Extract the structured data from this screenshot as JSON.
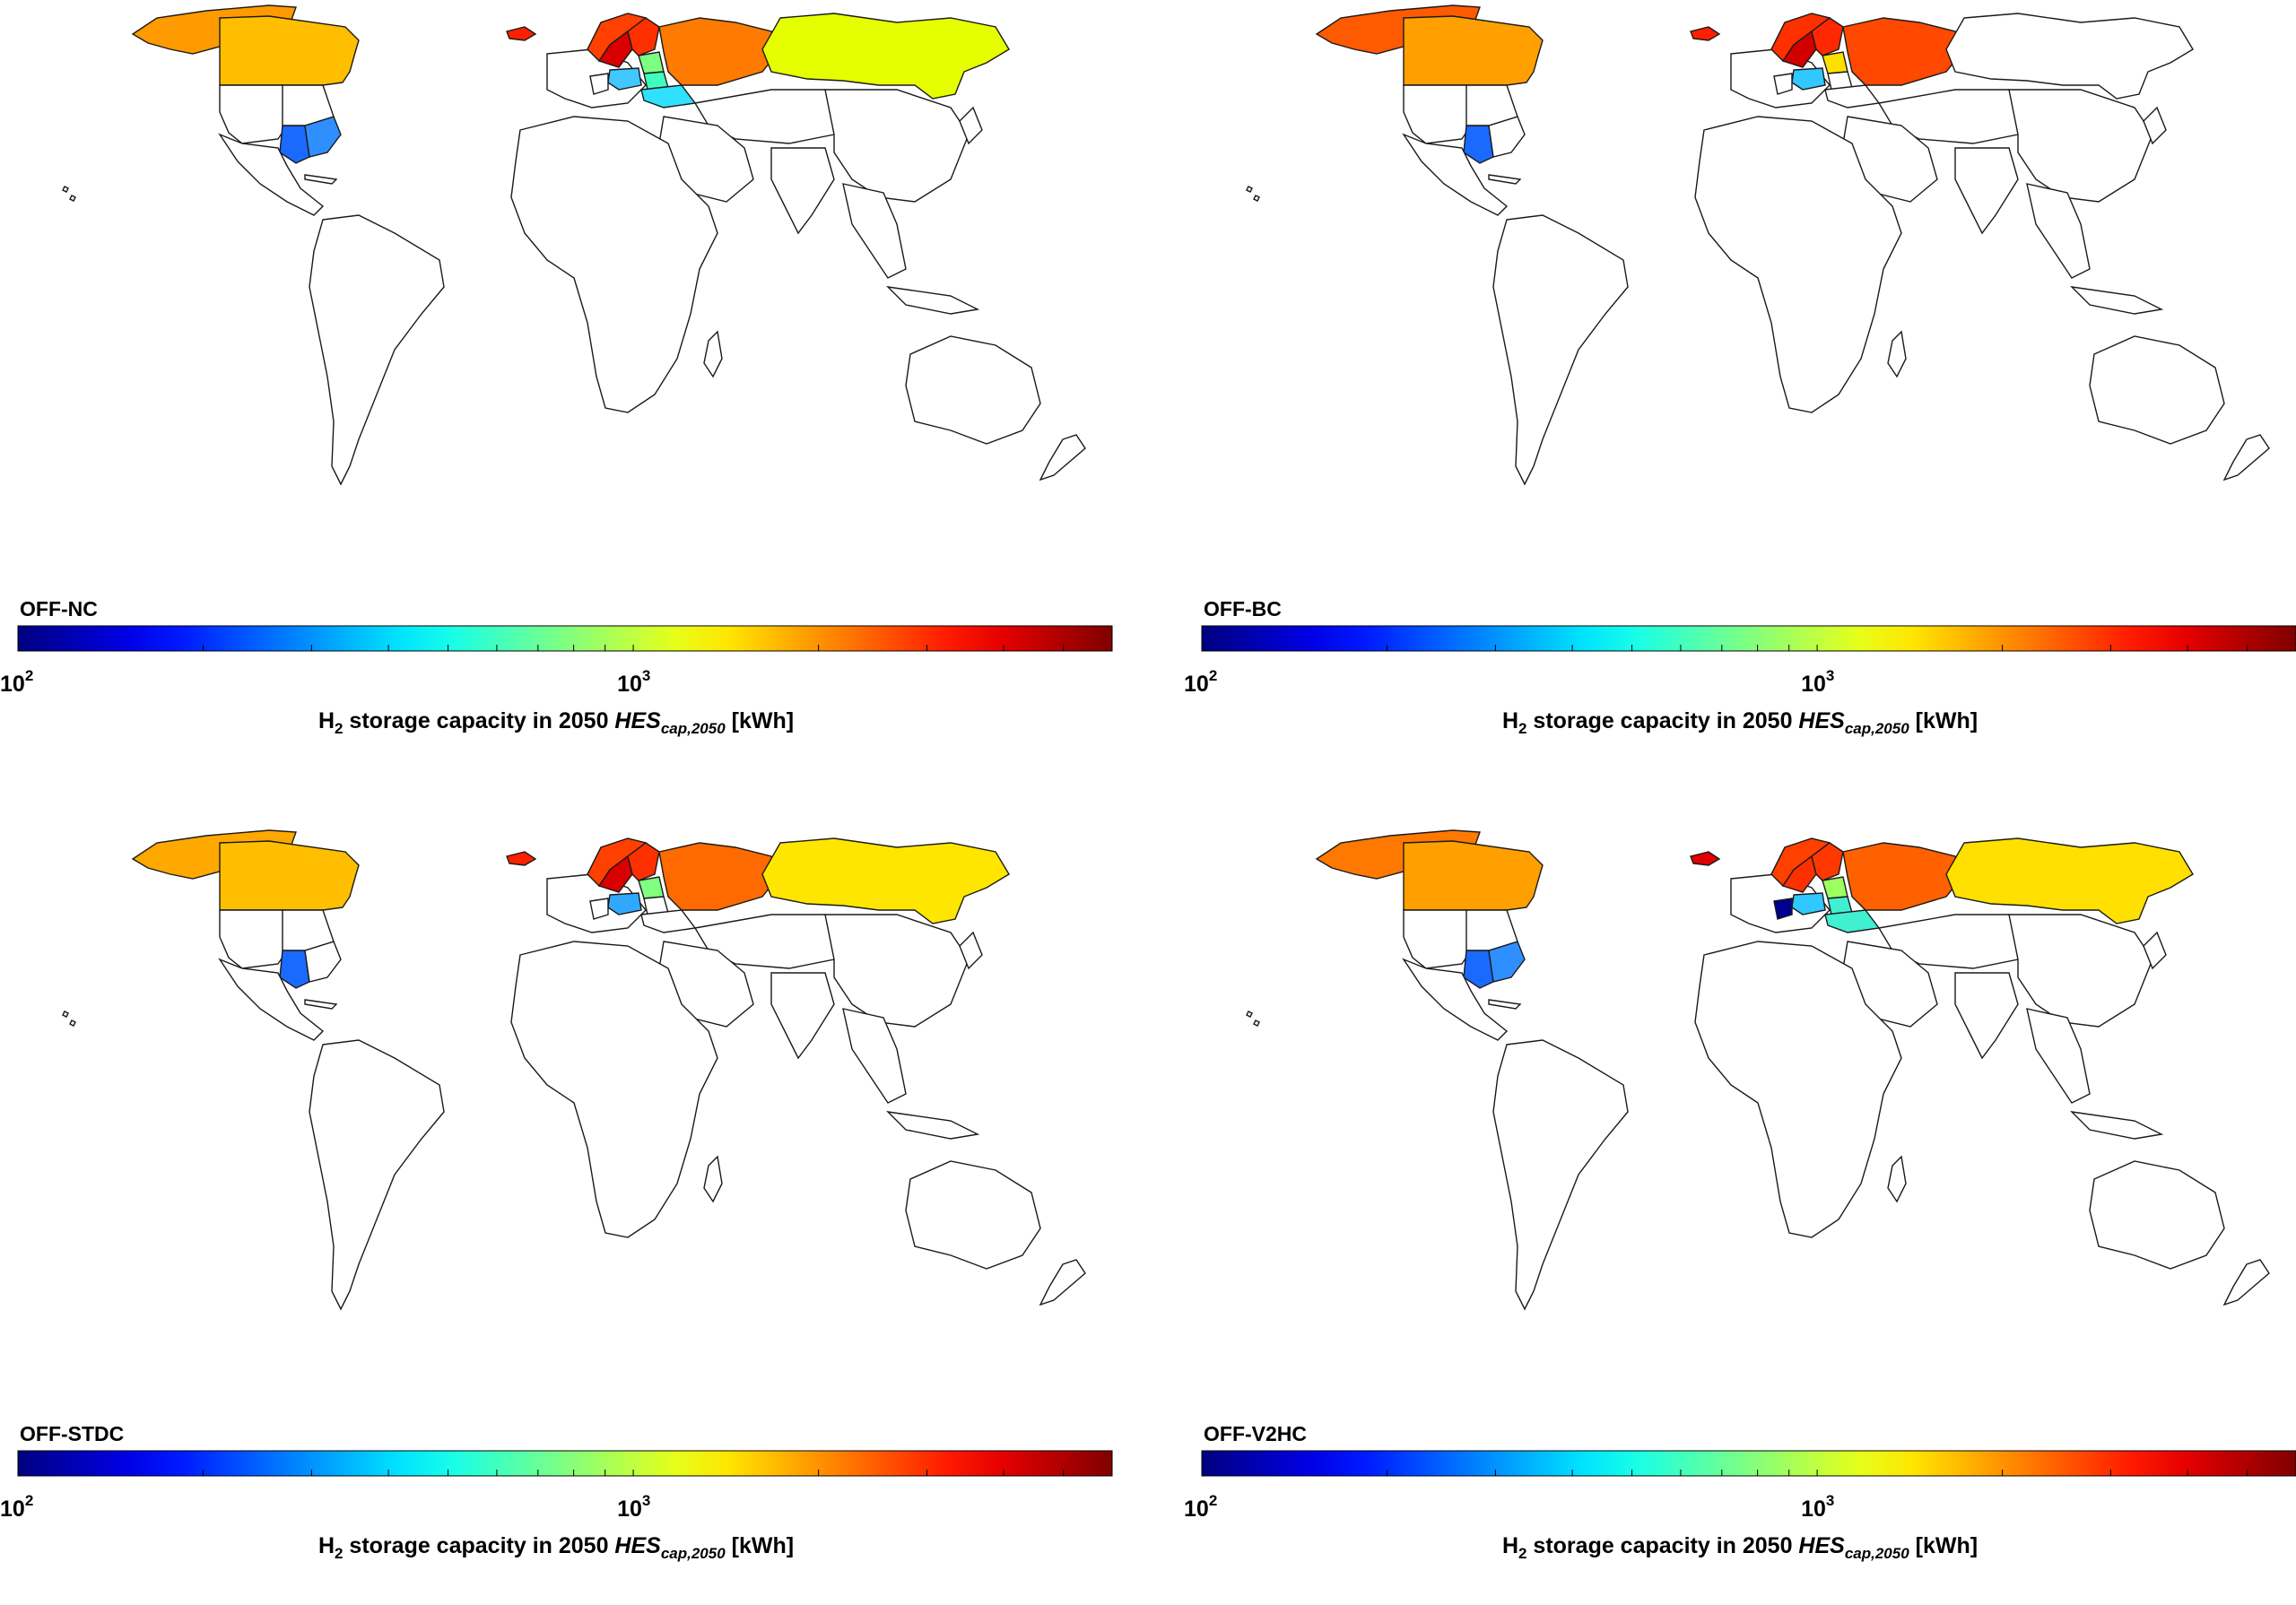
{
  "colorbar": {
    "tick_base": "10",
    "tick_low_exp": "2",
    "tick_high_exp": "3",
    "xlabel_pre": "H",
    "xlabel_sub": "2",
    "xlabel_mid": " storage capacity in 2050 ",
    "xlabel_var": "HES",
    "xlabel_var_sub": "cap,2050",
    "xlabel_unit": " [kWh]",
    "scale": "log",
    "range": [
      100,
      6000
    ],
    "colormap": "jet"
  },
  "panels": [
    {
      "scenario": "OFF-NC",
      "regions": [
        {
          "region": "greenland",
          "color": "#ff9a00"
        },
        {
          "region": "canada",
          "color": "#ffbe00"
        },
        {
          "region": "iceland",
          "color": "#ff2000"
        },
        {
          "region": "norway",
          "color": "#ff4000"
        },
        {
          "region": "sweden",
          "color": "#d80000"
        },
        {
          "region": "finland",
          "color": "#ff3000"
        },
        {
          "region": "russia-west",
          "color": "#ff7a00"
        },
        {
          "region": "russia-east",
          "color": "#e6ff00"
        },
        {
          "region": "belarus",
          "color": "#40ffbe"
        },
        {
          "region": "ukraine",
          "color": "#30e0ff"
        },
        {
          "region": "poland",
          "color": "#40c8ff"
        },
        {
          "region": "baltics",
          "color": "#7cff80"
        },
        {
          "region": "us-central",
          "color": "#1a6aff"
        },
        {
          "region": "us-east",
          "color": "#2f8fff"
        }
      ]
    },
    {
      "scenario": "OFF-BC",
      "regions": [
        {
          "region": "greenland",
          "color": "#ff5a00"
        },
        {
          "region": "canada",
          "color": "#ffa000"
        },
        {
          "region": "iceland",
          "color": "#ff2000"
        },
        {
          "region": "norway",
          "color": "#ff3000"
        },
        {
          "region": "sweden",
          "color": "#d00000"
        },
        {
          "region": "finland",
          "color": "#ff2800"
        },
        {
          "region": "russia-west",
          "color": "#ff4800"
        },
        {
          "region": "poland",
          "color": "#30c8ff"
        },
        {
          "region": "baltics",
          "color": "#ffe000"
        },
        {
          "region": "us-central",
          "color": "#1a6aff"
        }
      ]
    },
    {
      "scenario": "OFF-STDC",
      "regions": [
        {
          "region": "greenland",
          "color": "#ffa800"
        },
        {
          "region": "canada",
          "color": "#ffbe00"
        },
        {
          "region": "iceland",
          "color": "#ff2000"
        },
        {
          "region": "norway",
          "color": "#ff4000"
        },
        {
          "region": "sweden",
          "color": "#d80000"
        },
        {
          "region": "finland",
          "color": "#ff3000"
        },
        {
          "region": "russia-west",
          "color": "#ff6a00"
        },
        {
          "region": "russia-east",
          "color": "#ffe600"
        },
        {
          "region": "poland",
          "color": "#30a8ff"
        },
        {
          "region": "baltics",
          "color": "#80ff80"
        },
        {
          "region": "us-central",
          "color": "#1a6aff"
        }
      ]
    },
    {
      "scenario": "OFF-V2HC",
      "regions": [
        {
          "region": "greenland",
          "color": "#ff7800"
        },
        {
          "region": "canada",
          "color": "#ffa000"
        },
        {
          "region": "iceland",
          "color": "#e00000"
        },
        {
          "region": "norway",
          "color": "#ff4000"
        },
        {
          "region": "sweden",
          "color": "#ff3000"
        },
        {
          "region": "finland",
          "color": "#ff3800"
        },
        {
          "region": "russia-west",
          "color": "#ff6000"
        },
        {
          "region": "russia-east",
          "color": "#ffe000"
        },
        {
          "region": "belarus",
          "color": "#40f0d0"
        },
        {
          "region": "ukraine",
          "color": "#40f0d0"
        },
        {
          "region": "poland",
          "color": "#30c8ff"
        },
        {
          "region": "germany",
          "color": "#00008f"
        },
        {
          "region": "baltics",
          "color": "#9cff60"
        },
        {
          "region": "us-central",
          "color": "#1a6aff"
        },
        {
          "region": "us-east",
          "color": "#2f8fff"
        }
      ]
    }
  ]
}
